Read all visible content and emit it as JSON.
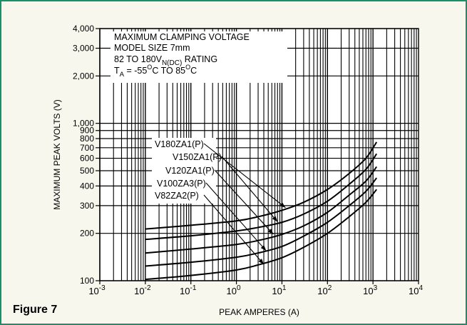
{
  "figure_label": "Figure 7",
  "chart_data": {
    "type": "line",
    "xlabel": "PEAK AMPERES (A)",
    "ylabel": "MAXIMUM PEAK VOLTS (V)",
    "xscale": "log",
    "yscale": "log",
    "xlim": [
      0.001,
      10000
    ],
    "ylim": [
      100,
      4000
    ],
    "x_ticks": [
      {
        "value": 0.001,
        "base": "10",
        "exp": "-3"
      },
      {
        "value": 0.01,
        "base": "10",
        "exp": "-2"
      },
      {
        "value": 0.1,
        "base": "10",
        "exp": "-1"
      },
      {
        "value": 1,
        "base": "10",
        "exp": "0"
      },
      {
        "value": 10,
        "base": "10",
        "exp": "1"
      },
      {
        "value": 100,
        "base": "10",
        "exp": "2"
      },
      {
        "value": 1000,
        "base": "10",
        "exp": "3"
      },
      {
        "value": 10000,
        "base": "10",
        "exp": "4"
      }
    ],
    "y_ticks": [
      {
        "value": 100,
        "label": "100"
      },
      {
        "value": 200,
        "label": "200"
      },
      {
        "value": 300,
        "label": "300"
      },
      {
        "value": 400,
        "label": "400"
      },
      {
        "value": 500,
        "label": "500"
      },
      {
        "value": 600,
        "label": "600"
      },
      {
        "value": 700,
        "label": "700"
      },
      {
        "value": 800,
        "label": "800"
      },
      {
        "value": 900,
        "label": "900"
      },
      {
        "value": 1000,
        "label": "1,000"
      },
      {
        "value": 2000,
        "label": "2,000"
      },
      {
        "value": 3000,
        "label": "3,000"
      },
      {
        "value": 4000,
        "label": "4,000"
      }
    ],
    "grid": true,
    "info_box": {
      "line1": "MAXIMUM CLAMPING VOLTAGE",
      "line2": "MODEL SIZE 7mm",
      "line3_prefix": "82 TO 180V",
      "line3_sub": "N(DC)",
      "line3_suffix": " RATING",
      "line4_a": "T",
      "line4_a_sub": "A",
      "line4_b": " = -55",
      "line4_c": "O",
      "line4_d": "C TO 85",
      "line4_e": "O",
      "line4_f": "C"
    },
    "series": [
      {
        "name": "V180ZA1(P)",
        "x": [
          0.01,
          0.1,
          1,
          3,
          10,
          30,
          100,
          300,
          700,
          1200
        ],
        "values": [
          213,
          225,
          240,
          255,
          280,
          315,
          380,
          480,
          600,
          760
        ],
        "label_point": {
          "x": 12,
          "y": 291
        }
      },
      {
        "name": "V150ZA1(P)",
        "x": [
          0.01,
          0.1,
          1,
          3,
          10,
          30,
          100,
          300,
          700,
          1200
        ],
        "values": [
          183,
          193,
          207,
          218,
          235,
          265,
          320,
          410,
          510,
          640
        ],
        "label_point": {
          "x": 8,
          "y": 237
        }
      },
      {
        "name": "V120ZA1(P)",
        "x": [
          0.01,
          0.1,
          1,
          3,
          10,
          30,
          100,
          300,
          700,
          1200
        ],
        "values": [
          150,
          159,
          170,
          180,
          197,
          223,
          272,
          350,
          430,
          530
        ],
        "label_point": {
          "x": 6.5,
          "y": 197
        }
      },
      {
        "name": "V100ZA3(P)",
        "x": [
          0.01,
          0.1,
          1,
          3,
          10,
          30,
          100,
          300,
          700,
          1200
        ],
        "values": [
          124,
          131,
          141,
          150,
          165,
          192,
          235,
          300,
          370,
          450
        ],
        "label_point": {
          "x": 4.5,
          "y": 155
        }
      },
      {
        "name": "V82ZA2(P)",
        "x": [
          0.01,
          0.1,
          1,
          3,
          10,
          30,
          100,
          300,
          700,
          1200
        ],
        "values": [
          102,
          108,
          117,
          126,
          140,
          163,
          200,
          255,
          315,
          380
        ],
        "label_point": {
          "x": 4,
          "y": 127
        }
      }
    ],
    "series_color": "#000000",
    "accent_border": "#1b8f6a",
    "background": "#f8f7ee"
  }
}
